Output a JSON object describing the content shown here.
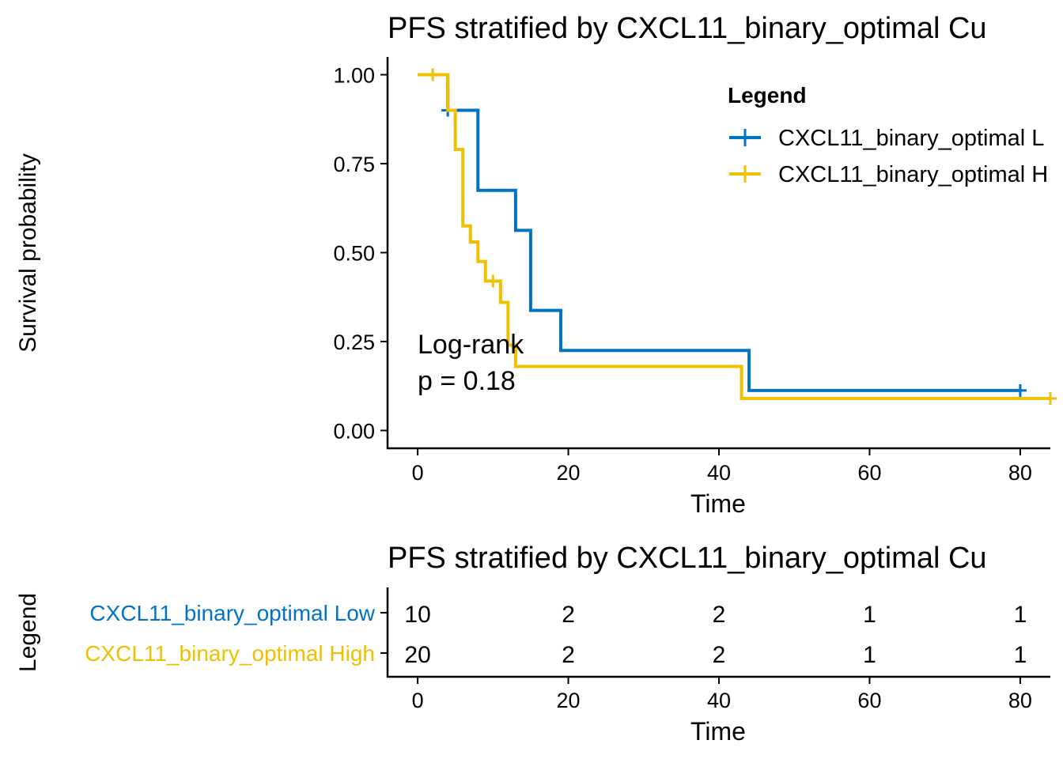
{
  "colors": {
    "low": "#0073C2",
    "high": "#EFC000",
    "axis": "#000000",
    "text": "#000000"
  },
  "chart_data": [
    {
      "type": "line",
      "subtype": "kaplan-meier",
      "title": "PFS stratified by CXCL11_binary_optimal Cu",
      "xlabel": "Time",
      "ylabel": "Survival probability",
      "xlim": [
        -4,
        84
      ],
      "ylim": [
        -0.05,
        1.05
      ],
      "xticks": [
        "0",
        "20",
        "40",
        "60",
        "80"
      ],
      "yticks": [
        "0.00",
        "0.25",
        "0.50",
        "0.75",
        "1.00"
      ],
      "grid": false,
      "legend": {
        "title": "Legend",
        "position": "top-right",
        "labels": [
          "CXCL11_binary_optimal L",
          "CXCL11_binary_optimal H"
        ]
      },
      "annotation": {
        "line1": "Log-rank",
        "line2": "p = 0.18"
      },
      "series": [
        {
          "name": "CXCL11_binary_optimal Low",
          "color_key": "low",
          "steps": [
            [
              0,
              1.0
            ],
            [
              4,
              0.9
            ],
            [
              8,
              0.675
            ],
            [
              13,
              0.5625
            ],
            [
              15,
              0.3375
            ],
            [
              19,
              0.225
            ],
            [
              44,
              0.1125
            ],
            [
              80,
              0.1125
            ]
          ],
          "censored": [
            [
              4,
              0.9
            ],
            [
              80,
              0.1125
            ]
          ]
        },
        {
          "name": "CXCL11_binary_optimal High",
          "color_key": "high",
          "steps": [
            [
              0,
              1.0
            ],
            [
              4,
              0.9
            ],
            [
              5,
              0.79
            ],
            [
              6,
              0.575
            ],
            [
              7,
              0.53
            ],
            [
              8,
              0.475
            ],
            [
              9,
              0.42
            ],
            [
              11,
              0.36
            ],
            [
              12,
              0.24
            ],
            [
              13,
              0.18
            ],
            [
              43,
              0.09
            ],
            [
              84,
              0.09
            ]
          ],
          "censored": [
            [
              2,
              1.0
            ],
            [
              10,
              0.42
            ],
            [
              84,
              0.09
            ]
          ]
        }
      ]
    },
    {
      "type": "table",
      "title": "PFS stratified by CXCL11_binary_optimal Cu",
      "xlabel": "Time",
      "ylabel": "Legend",
      "xlim": [
        -4,
        84
      ],
      "xticks": [
        "0",
        "20",
        "40",
        "60",
        "80"
      ],
      "time_points": [
        0,
        20,
        40,
        60,
        80
      ],
      "rows": [
        {
          "label": "CXCL11_binary_optimal Low",
          "color_key": "low",
          "values": [
            "10",
            "2",
            "2",
            "1",
            "1"
          ]
        },
        {
          "label": "CXCL11_binary_optimal High",
          "color_key": "high",
          "values": [
            "20",
            "2",
            "2",
            "1",
            "1"
          ]
        }
      ]
    }
  ]
}
